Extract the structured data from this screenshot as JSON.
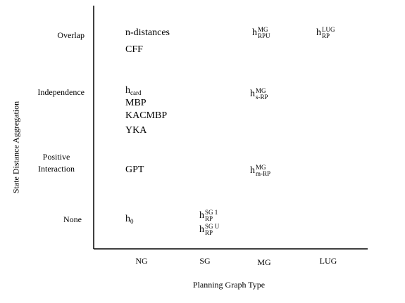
{
  "axes": {
    "x_title": "Planning Graph Type",
    "y_title": "State Distance Aggregation",
    "columns": [
      "NG",
      "SG",
      "MG",
      "LUG"
    ],
    "rows": [
      "Overlap",
      "Independence",
      "Positive Interaction",
      "None"
    ]
  },
  "cells": {
    "overlap_ng": [
      "n-distances",
      "CFF"
    ],
    "overlap_mg": {
      "base": "h",
      "sup": "MG",
      "sub": "RPU"
    },
    "overlap_lug": {
      "base": "h",
      "sup": "LUG",
      "sub": "RP"
    },
    "independence_ng": {
      "h": {
        "base": "h",
        "sub": "card"
      },
      "items": [
        "MBP",
        "KACMBP",
        "YKA"
      ]
    },
    "independence_mg": {
      "base": "h",
      "sup": "MG",
      "sub": "s-RP"
    },
    "positive_ng": [
      "GPT"
    ],
    "positive_mg": {
      "base": "h",
      "sup": "MG",
      "sub": "m-RP"
    },
    "none_ng": {
      "base": "h",
      "sub": "0"
    },
    "none_sg": [
      {
        "base": "h",
        "sup": "SG",
        "sup2": "1",
        "sub": "RP"
      },
      {
        "base": "h",
        "sup": "SG",
        "sup2": "U",
        "sub": "RP"
      }
    ]
  }
}
